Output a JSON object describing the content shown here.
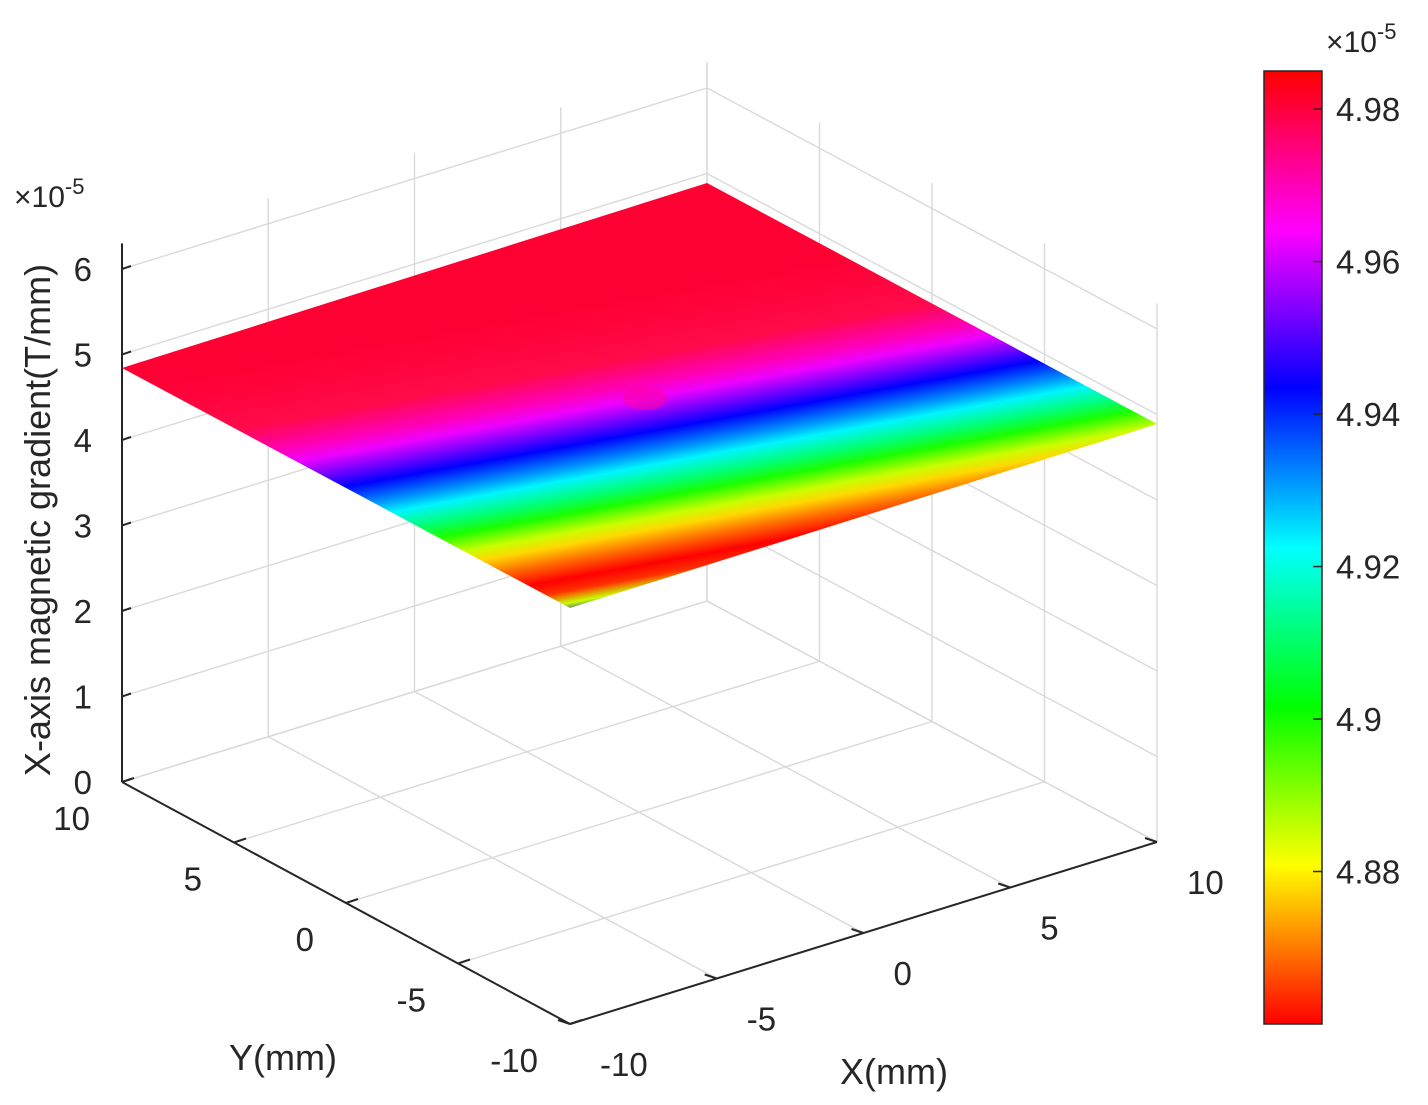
{
  "chart_data": {
    "type": "surface",
    "xlabel": "X(mm)",
    "ylabel": "Y(mm)",
    "zlabel": "X-axis magnetic gradient(T/mm)",
    "x_ticks": [
      "-10",
      "-5",
      "0",
      "5",
      "10"
    ],
    "y_ticks": [
      "-10",
      "-5",
      "0",
      "5",
      "10"
    ],
    "z_ticks": [
      "0",
      "1",
      "2",
      "3",
      "4",
      "5",
      "6"
    ],
    "xlim": [
      -10,
      10
    ],
    "ylim": [
      -10,
      10
    ],
    "zlim": [
      0,
      6
    ],
    "z_multiplier": "×10",
    "z_multiplier_exp": "-5",
    "grid": true,
    "surface_value_approx": 4.93,
    "colorbar": {
      "ticks": [
        "4.88",
        "4.9",
        "4.92",
        "4.94",
        "4.96",
        "4.98"
      ],
      "range": [
        4.86,
        4.985
      ],
      "multiplier": "×10",
      "multiplier_exp": "-5",
      "colormap": "hsv"
    }
  }
}
